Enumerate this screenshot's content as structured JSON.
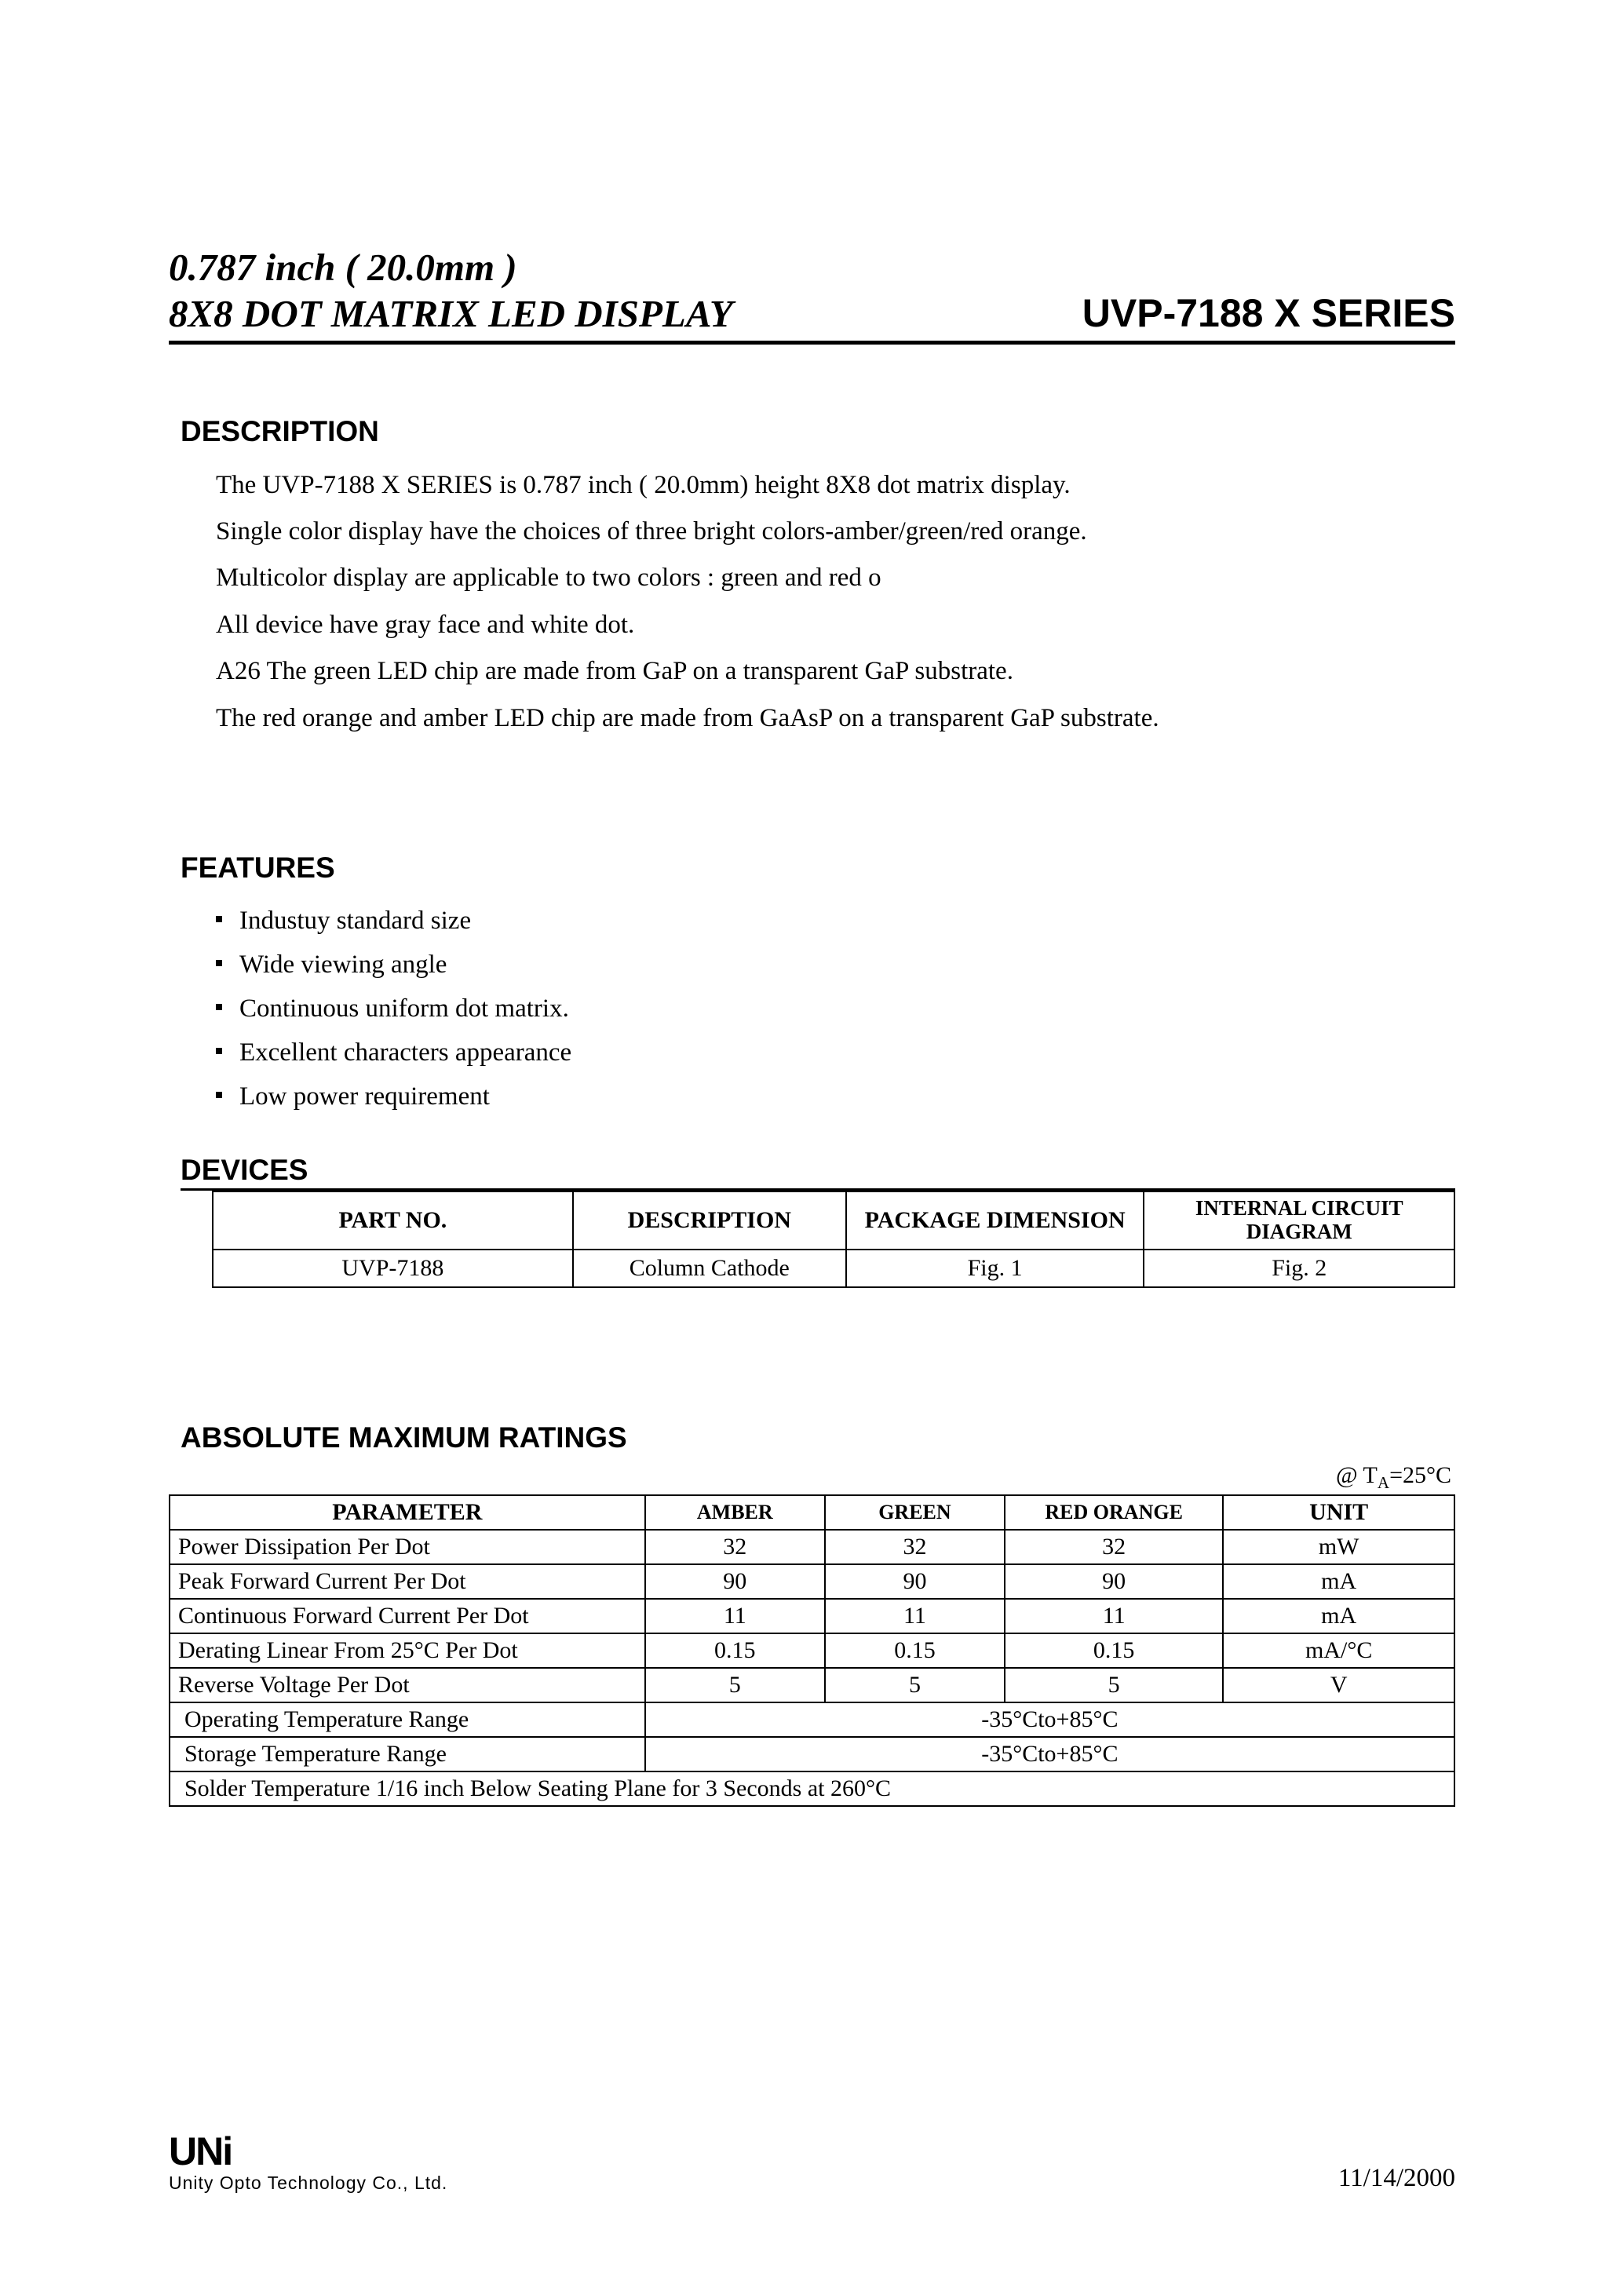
{
  "header": {
    "title_line1": "0.787 inch ( 20.0mm )",
    "title_line2": "8X8 DOT MATRIX LED DISPLAY",
    "series": "UVP-7188 X SERIES"
  },
  "section_headings": {
    "description": "DESCRIPTION",
    "features": "FEATURES",
    "devices": "DEVICES",
    "ratings": "ABSOLUTE MAXIMUM RATINGS"
  },
  "description_lines": [
    "The UVP-7188 X SERIES is 0.787 inch ( 20.0mm) height 8X8 dot matrix display.",
    "Single color display have the  choices of three bright colors-amber/green/red orange.",
    "Multicolor display are applicable to two colors : green and red o",
    "All device have gray face and white dot.",
    "A26 The green LED chip are made from GaP on a transparent GaP substrate.",
    "The red orange and amber LED chip are made from GaAsP on a transparent GaP substrate."
  ],
  "features": [
    "Industuy standard size",
    "Wide viewing angle",
    "Continuous uniform dot matrix.",
    "Excellent characters appearance",
    "Low power requirement"
  ],
  "devices_table": {
    "columns": [
      "PART NO.",
      "DESCRIPTION",
      "PACKAGE DIMENSION",
      "INTERNAL CIRCUIT DIAGRAM"
    ],
    "col_widths": [
      "29%",
      "22%",
      "24%",
      "25%"
    ],
    "rows": [
      [
        "UVP-7188",
        "Column Cathode",
        "Fig. 1",
        "Fig. 2"
      ]
    ]
  },
  "ratings_note_prefix": "@  T",
  "ratings_note_sub": "A",
  "ratings_note_suffix": "=25°C",
  "ratings_table": {
    "columns": [
      "PARAMETER",
      "AMBER",
      "GREEN",
      "RED ORANGE",
      "UNIT"
    ],
    "col_widths": [
      "37%",
      "14%",
      "14%",
      "17%",
      "18%"
    ],
    "rows": [
      {
        "param": "Power Dissipation Per Dot",
        "amber": "32",
        "green": "32",
        "red": "32",
        "unit": "mW"
      },
      {
        "param": "Peak Forward Current Per Dot",
        "amber": "90",
        "green": "90",
        "red": "90",
        "unit": "mA"
      },
      {
        "param": "Continuous Forward Current Per Dot",
        "amber": "11",
        "green": "11",
        "red": "11",
        "unit": "mA"
      },
      {
        "param": "Derating Linear From 25°C Per Dot",
        "amber": "0.15",
        "green": "0.15",
        "red": "0.15",
        "unit": "mA/°C"
      },
      {
        "param": "Reverse Voltage Per Dot",
        "amber": "5",
        "green": "5",
        "red": "5",
        "unit": "V"
      }
    ],
    "merged_rows": [
      {
        "param": "Operating Temperature Range",
        "value": "-35°Cto+85°C"
      },
      {
        "param": "Storage Temperature Range",
        "value": "-35°Cto+85°C"
      }
    ],
    "full_row": "Solder Temperature 1/16 inch Below Seating Plane for 3 Seconds at 260°C"
  },
  "footer": {
    "logo": "UNi",
    "company": "Unity Opto Technology Co., Ltd.",
    "date": "11/14/2000"
  },
  "colors": {
    "text": "#000000",
    "background": "#ffffff",
    "border": "#000000"
  }
}
